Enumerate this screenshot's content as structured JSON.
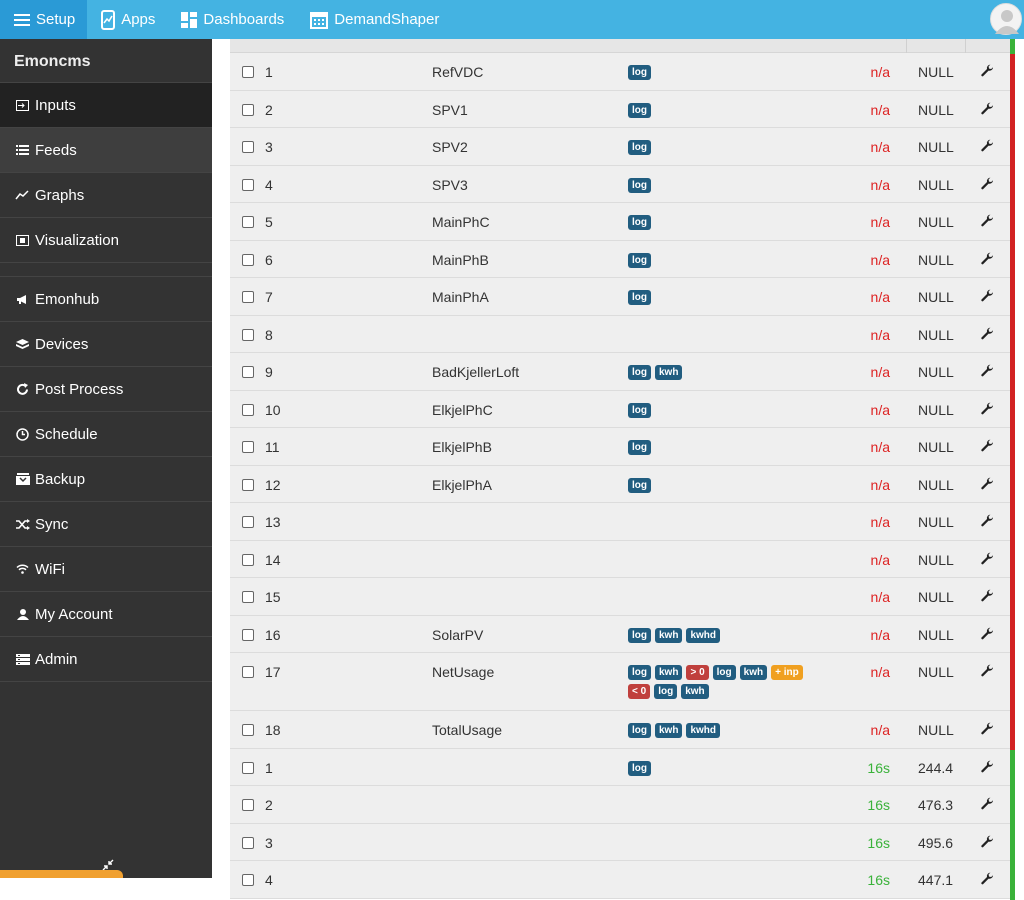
{
  "topbar": {
    "items": [
      {
        "label": "Setup",
        "icon": "hamburger-icon"
      },
      {
        "label": "Apps",
        "icon": "apps-icon"
      },
      {
        "label": "Dashboards",
        "icon": "dashboards-icon"
      },
      {
        "label": "DemandShaper",
        "icon": "calendar-icon"
      }
    ]
  },
  "sidebar": {
    "brand": "Emoncms",
    "items": [
      {
        "label": "Inputs",
        "icon": "input-icon"
      },
      {
        "label": "Feeds",
        "icon": "list-icon"
      },
      {
        "label": "Graphs",
        "icon": "graph-icon"
      },
      {
        "label": "Visualization",
        "icon": "visualization-icon"
      },
      {
        "label": "Emonhub",
        "icon": "megaphone-icon"
      },
      {
        "label": "Devices",
        "icon": "cube-icon"
      },
      {
        "label": "Post Process",
        "icon": "refresh-icon"
      },
      {
        "label": "Schedule",
        "icon": "clock-icon"
      },
      {
        "label": "Backup",
        "icon": "backup-icon"
      },
      {
        "label": "Sync",
        "icon": "shuffle-icon"
      },
      {
        "label": "WiFi",
        "icon": "wifi-icon"
      },
      {
        "label": "My Account",
        "icon": "user-icon"
      },
      {
        "label": "Admin",
        "icon": "admin-icon"
      }
    ]
  },
  "colors": {
    "topbar": "#44b3e2",
    "sidebar": "#333333",
    "badge_blue": "#215d80",
    "badge_red": "#c0403d",
    "badge_orange": "#f0a020",
    "stale": "#d22222",
    "fresh": "#3ab23a"
  },
  "inputs": [
    {
      "id": "1",
      "name": "RefVDC",
      "procs": [
        {
          "t": "log",
          "c": "blue"
        }
      ],
      "time": "n/a",
      "status": "stale",
      "value": "NULL"
    },
    {
      "id": "2",
      "name": "SPV1",
      "procs": [
        {
          "t": "log",
          "c": "blue"
        }
      ],
      "time": "n/a",
      "status": "stale",
      "value": "NULL"
    },
    {
      "id": "3",
      "name": "SPV2",
      "procs": [
        {
          "t": "log",
          "c": "blue"
        }
      ],
      "time": "n/a",
      "status": "stale",
      "value": "NULL"
    },
    {
      "id": "4",
      "name": "SPV3",
      "procs": [
        {
          "t": "log",
          "c": "blue"
        }
      ],
      "time": "n/a",
      "status": "stale",
      "value": "NULL"
    },
    {
      "id": "5",
      "name": "MainPhC",
      "procs": [
        {
          "t": "log",
          "c": "blue"
        }
      ],
      "time": "n/a",
      "status": "stale",
      "value": "NULL"
    },
    {
      "id": "6",
      "name": "MainPhB",
      "procs": [
        {
          "t": "log",
          "c": "blue"
        }
      ],
      "time": "n/a",
      "status": "stale",
      "value": "NULL"
    },
    {
      "id": "7",
      "name": "MainPhA",
      "procs": [
        {
          "t": "log",
          "c": "blue"
        }
      ],
      "time": "n/a",
      "status": "stale",
      "value": "NULL"
    },
    {
      "id": "8",
      "name": "",
      "procs": [],
      "time": "n/a",
      "status": "stale",
      "value": "NULL"
    },
    {
      "id": "9",
      "name": "BadKjellerLoft",
      "procs": [
        {
          "t": "log",
          "c": "blue"
        },
        {
          "t": "kwh",
          "c": "blue"
        }
      ],
      "time": "n/a",
      "status": "stale",
      "value": "NULL"
    },
    {
      "id": "10",
      "name": "ElkjelPhC",
      "procs": [
        {
          "t": "log",
          "c": "blue"
        }
      ],
      "time": "n/a",
      "status": "stale",
      "value": "NULL"
    },
    {
      "id": "11",
      "name": "ElkjelPhB",
      "procs": [
        {
          "t": "log",
          "c": "blue"
        }
      ],
      "time": "n/a",
      "status": "stale",
      "value": "NULL"
    },
    {
      "id": "12",
      "name": "ElkjelPhA",
      "procs": [
        {
          "t": "log",
          "c": "blue"
        }
      ],
      "time": "n/a",
      "status": "stale",
      "value": "NULL"
    },
    {
      "id": "13",
      "name": "",
      "procs": [],
      "time": "n/a",
      "status": "stale",
      "value": "NULL"
    },
    {
      "id": "14",
      "name": "",
      "procs": [],
      "time": "n/a",
      "status": "stale",
      "value": "NULL"
    },
    {
      "id": "15",
      "name": "",
      "procs": [],
      "time": "n/a",
      "status": "stale",
      "value": "NULL"
    },
    {
      "id": "16",
      "name": "SolarPV",
      "procs": [
        {
          "t": "log",
          "c": "blue"
        },
        {
          "t": "kwh",
          "c": "blue"
        },
        {
          "t": "kwhd",
          "c": "blue"
        }
      ],
      "time": "n/a",
      "status": "stale",
      "value": "NULL"
    },
    {
      "id": "17",
      "name": "NetUsage",
      "procs": [
        {
          "t": "log",
          "c": "blue"
        },
        {
          "t": "kwh",
          "c": "blue"
        },
        {
          "t": "> 0",
          "c": "red"
        },
        {
          "t": "log",
          "c": "blue"
        },
        {
          "t": "kwh",
          "c": "blue"
        },
        {
          "t": "+ inp",
          "c": "orange"
        },
        {
          "t": "< 0",
          "c": "red"
        },
        {
          "t": "log",
          "c": "blue"
        },
        {
          "t": "kwh",
          "c": "blue"
        }
      ],
      "time": "n/a",
      "status": "stale",
      "value": "NULL",
      "tall": true
    },
    {
      "id": "18",
      "name": "TotalUsage",
      "procs": [
        {
          "t": "log",
          "c": "blue"
        },
        {
          "t": "kwh",
          "c": "blue"
        },
        {
          "t": "kwhd",
          "c": "blue"
        }
      ],
      "time": "n/a",
      "status": "stale",
      "value": "NULL"
    },
    {
      "id": "1",
      "name": "",
      "procs": [
        {
          "t": "log",
          "c": "blue"
        }
      ],
      "time": "16s",
      "status": "fresh",
      "value": "244.4"
    },
    {
      "id": "2",
      "name": "",
      "procs": [],
      "time": "16s",
      "status": "fresh",
      "value": "476.3"
    },
    {
      "id": "3",
      "name": "",
      "procs": [],
      "time": "16s",
      "status": "fresh",
      "value": "495.6"
    },
    {
      "id": "4",
      "name": "",
      "procs": [],
      "time": "16s",
      "status": "fresh",
      "value": "447.1"
    }
  ]
}
